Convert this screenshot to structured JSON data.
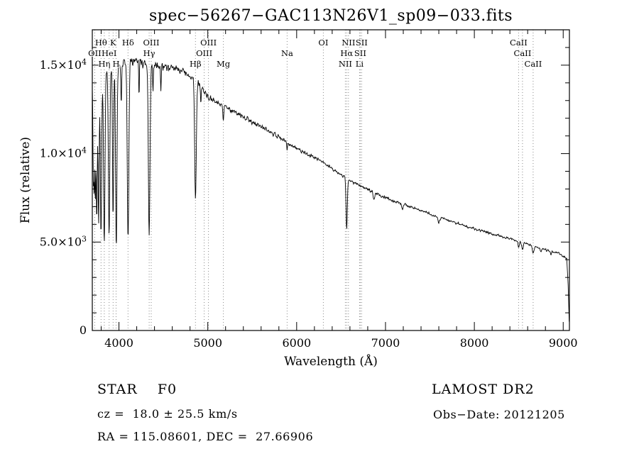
{
  "annotations": {
    "class_label": "STAR    F0",
    "survey": "LAMOST DR2",
    "cz": "cz =  18.0 ± 25.5 km/s",
    "obs_date": "Obs−Date: 20121205",
    "coords": "RA = 115.08601, DEC =  27.66906"
  },
  "chart_data": {
    "type": "line",
    "title": "spec−56267−GAC113N26V1_sp09−033.fits",
    "xlabel": "Wavelength (Å)",
    "ylabel": "Flux (relative)",
    "xlim": [
      3700,
      9070
    ],
    "ylim": [
      0,
      17000
    ],
    "x_ticks": [
      4000,
      5000,
      6000,
      7000,
      8000,
      9000
    ],
    "x_minor_step": 200,
    "y_ticks": [
      {
        "v": 0,
        "base": "0"
      },
      {
        "v": 5000,
        "base": "5.0×10",
        "exp": "3"
      },
      {
        "v": 10000,
        "base": "1.0×10",
        "exp": "4"
      },
      {
        "v": 15000,
        "base": "1.5×10",
        "exp": "4"
      }
    ],
    "y_minor_step": 1000,
    "grid": false,
    "legend": false,
    "noise_seed": 12,
    "noise_amp": [
      [
        3700,
        450
      ],
      [
        4200,
        350
      ],
      [
        4700,
        260
      ],
      [
        5200,
        190
      ],
      [
        6000,
        140
      ],
      [
        6800,
        110
      ],
      [
        7600,
        95
      ],
      [
        9070,
        85
      ]
    ],
    "continuum": [
      [
        3700,
        14200
      ],
      [
        3760,
        14000
      ],
      [
        3860,
        14800
      ],
      [
        3960,
        15100
      ],
      [
        4150,
        15300
      ],
      [
        4400,
        15000
      ],
      [
        4650,
        14800
      ],
      [
        4850,
        14300
      ],
      [
        5000,
        13200
      ],
      [
        5250,
        12500
      ],
      [
        5500,
        11800
      ],
      [
        5750,
        11100
      ],
      [
        6000,
        10300
      ],
      [
        6250,
        9650
      ],
      [
        6500,
        8800
      ],
      [
        6750,
        8100
      ],
      [
        7000,
        7500
      ],
      [
        7250,
        7050
      ],
      [
        7500,
        6600
      ],
      [
        7750,
        6150
      ],
      [
        8000,
        5750
      ],
      [
        8250,
        5400
      ],
      [
        8500,
        5050
      ],
      [
        8750,
        4650
      ],
      [
        8950,
        4350
      ],
      [
        9040,
        4100
      ],
      [
        9056,
        2500
      ],
      [
        9070,
        150
      ]
    ],
    "absorption_lines": [
      [
        3712,
        0.4,
        5
      ],
      [
        3722,
        0.38,
        4
      ],
      [
        3734,
        0.48,
        5
      ],
      [
        3750,
        0.54,
        6
      ],
      [
        3771,
        0.57,
        6
      ],
      [
        3798,
        0.62,
        7
      ],
      [
        3835,
        0.66,
        8
      ],
      [
        3889,
        0.64,
        8
      ],
      [
        3934,
        0.58,
        6
      ],
      [
        3970,
        0.68,
        8
      ],
      [
        4026,
        0.16,
        5
      ],
      [
        4102,
        0.66,
        9
      ],
      [
        4226,
        0.13,
        4
      ],
      [
        4340,
        0.64,
        9
      ],
      [
        4383,
        0.1,
        4
      ],
      [
        4472,
        0.1,
        4
      ],
      [
        4861,
        0.48,
        9
      ],
      [
        4922,
        0.07,
        4
      ],
      [
        5175,
        0.06,
        6
      ],
      [
        5893,
        0.05,
        4
      ],
      [
        6563,
        0.34,
        7
      ],
      [
        6870,
        0.05,
        8
      ],
      [
        7190,
        0.04,
        8
      ],
      [
        7600,
        0.05,
        10
      ],
      [
        8498,
        0.07,
        7
      ],
      [
        8542,
        0.09,
        8
      ],
      [
        8662,
        0.08,
        8
      ],
      [
        8750,
        0.05,
        6
      ],
      [
        8860,
        0.05,
        6
      ]
    ],
    "features": [
      {
        "label": "OII",
        "wl": 3727,
        "row": 2
      },
      {
        "label": "Hθ",
        "wl": 3798,
        "row": 1
      },
      {
        "label": "Hη",
        "wl": 3835,
        "row": 3
      },
      {
        "label": "HeI",
        "wl": 3889,
        "row": 2
      },
      {
        "label": "K",
        "wl": 3934,
        "row": 1
      },
      {
        "label": "H",
        "wl": 3968,
        "row": 3
      },
      {
        "label": "Hδ",
        "wl": 4102,
        "row": 1
      },
      {
        "label": "Hγ",
        "wl": 4340,
        "row": 2
      },
      {
        "label": "OIII",
        "wl": 4363,
        "row": 1
      },
      {
        "label": "Hβ",
        "wl": 4861,
        "row": 3
      },
      {
        "label": "OIII",
        "wl": 4959,
        "row": 2
      },
      {
        "label": "OIII",
        "wl": 5007,
        "row": 1
      },
      {
        "label": "Mg",
        "wl": 5175,
        "row": 3
      },
      {
        "label": "Na",
        "wl": 5893,
        "row": 2
      },
      {
        "label": "OI",
        "wl": 6300,
        "row": 1
      },
      {
        "label": "NII",
        "wl": 6548,
        "row": 3
      },
      {
        "label": "Hα",
        "wl": 6563,
        "row": 2
      },
      {
        "label": "NII",
        "wl": 6583,
        "row": 1
      },
      {
        "label": "Li",
        "wl": 6708,
        "row": 3
      },
      {
        "label": "SII",
        "wl": 6716,
        "row": 2
      },
      {
        "label": "SII",
        "wl": 6731,
        "row": 1
      },
      {
        "label": "CaII",
        "wl": 8498,
        "row": 1
      },
      {
        "label": "CaII",
        "wl": 8542,
        "row": 2
      },
      {
        "label": "CaII",
        "wl": 8662,
        "row": 3
      }
    ],
    "colors": {
      "trace": "#000000",
      "marker": "#8a8a8a",
      "frame": "#000000"
    }
  }
}
